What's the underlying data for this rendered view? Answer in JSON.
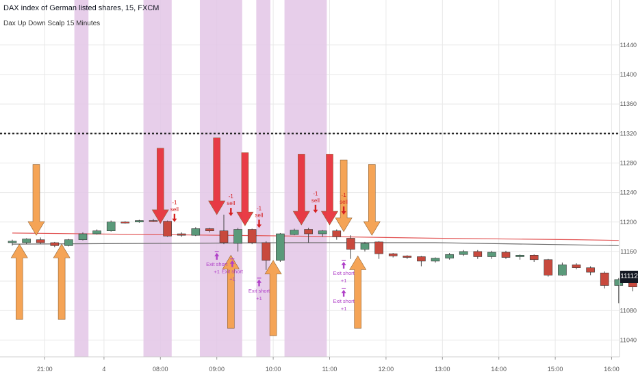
{
  "header": {
    "title": "DAX index of German listed shares, 15, FXCM",
    "subtitle": "Dax Up Down Scalp 15 Minutes"
  },
  "last_price": "11112",
  "colors": {
    "up": "#5a9a7a",
    "down": "#c8493d",
    "shade": "#e3c6e6",
    "ma_red": "#e25555",
    "ma_gray": "#6b6b6b",
    "arrow_orange": "#f5a04e",
    "arrow_red": "#e8333d",
    "marker_purple": "#b040c8",
    "dotted": "#222222",
    "grid": "#e8e8e8",
    "axis_text": "#555555"
  },
  "chart_data": {
    "type": "candlestick",
    "title": "DAX index of German listed shares, 15, FXCM",
    "indicator": "Dax Up Down Scalp 15 Minutes",
    "xlabel": "",
    "ylabel": "",
    "ylim": [
      11020,
      11500
    ],
    "yticks": [
      11040,
      11080,
      11120,
      11160,
      11200,
      11240,
      11280,
      11320,
      11360,
      11400,
      11440
    ],
    "xticks": [
      "21:00",
      "4",
      "08:00",
      "09:00",
      "10:00",
      "11:00",
      "12:00",
      "13:00",
      "14:00",
      "15:00",
      "16:00"
    ],
    "xtick_bars": [
      2.3,
      6.5,
      10.5,
      14.5,
      18.5,
      22.5,
      26.5,
      30.5,
      34.5,
      38.5,
      42.5
    ],
    "grid": true,
    "candles": [
      {
        "o": 11172,
        "h": 11176,
        "l": 11168,
        "c": 11174
      },
      {
        "o": 11172,
        "h": 11178,
        "l": 11170,
        "c": 11177
      },
      {
        "o": 11176,
        "h": 11179,
        "l": 11170,
        "c": 11172
      },
      {
        "o": 11172,
        "h": 11173,
        "l": 11166,
        "c": 11168
      },
      {
        "o": 11168,
        "h": 11177,
        "l": 11167,
        "c": 11176
      },
      {
        "o": 11176,
        "h": 11186,
        "l": 11175,
        "c": 11184
      },
      {
        "o": 11184,
        "h": 11190,
        "l": 11183,
        "c": 11188
      },
      {
        "o": 11188,
        "h": 11202,
        "l": 11187,
        "c": 11200
      },
      {
        "o": 11200,
        "h": 11201,
        "l": 11198,
        "c": 11199
      },
      {
        "o": 11200,
        "h": 11203,
        "l": 11199,
        "c": 11202
      },
      {
        "o": 11202,
        "h": 11204,
        "l": 11200,
        "c": 11201
      },
      {
        "o": 11201,
        "h": 11202,
        "l": 11180,
        "c": 11181
      },
      {
        "o": 11184,
        "h": 11186,
        "l": 11180,
        "c": 11182
      },
      {
        "o": 11182,
        "h": 11193,
        "l": 11181,
        "c": 11191
      },
      {
        "o": 11191,
        "h": 11192,
        "l": 11186,
        "c": 11188
      },
      {
        "o": 11188,
        "h": 11210,
        "l": 11170,
        "c": 11172
      },
      {
        "o": 11171,
        "h": 11192,
        "l": 11160,
        "c": 11190
      },
      {
        "o": 11190,
        "h": 11191,
        "l": 11170,
        "c": 11172
      },
      {
        "o": 11172,
        "h": 11174,
        "l": 11135,
        "c": 11148
      },
      {
        "o": 11148,
        "h": 11185,
        "l": 11146,
        "c": 11184
      },
      {
        "o": 11183,
        "h": 11191,
        "l": 11182,
        "c": 11189
      },
      {
        "o": 11190,
        "h": 11192,
        "l": 11172,
        "c": 11184
      },
      {
        "o": 11184,
        "h": 11189,
        "l": 11180,
        "c": 11188
      },
      {
        "o": 11188,
        "h": 11190,
        "l": 11176,
        "c": 11180
      },
      {
        "o": 11178,
        "h": 11182,
        "l": 11150,
        "c": 11163
      },
      {
        "o": 11163,
        "h": 11173,
        "l": 11160,
        "c": 11171
      },
      {
        "o": 11173,
        "h": 11174,
        "l": 11150,
        "c": 11157
      },
      {
        "o": 11157,
        "h": 11158,
        "l": 11152,
        "c": 11154
      },
      {
        "o": 11154,
        "h": 11155,
        "l": 11150,
        "c": 11152
      },
      {
        "o": 11153,
        "h": 11154,
        "l": 11140,
        "c": 11147
      },
      {
        "o": 11147,
        "h": 11152,
        "l": 11145,
        "c": 11151
      },
      {
        "o": 11151,
        "h": 11158,
        "l": 11149,
        "c": 11156
      },
      {
        "o": 11156,
        "h": 11162,
        "l": 11154,
        "c": 11160
      },
      {
        "o": 11160,
        "h": 11162,
        "l": 11150,
        "c": 11153
      },
      {
        "o": 11153,
        "h": 11161,
        "l": 11150,
        "c": 11159
      },
      {
        "o": 11159,
        "h": 11161,
        "l": 11150,
        "c": 11152
      },
      {
        "o": 11153,
        "h": 11156,
        "l": 11149,
        "c": 11155
      },
      {
        "o": 11155,
        "h": 11156,
        "l": 11146,
        "c": 11149
      },
      {
        "o": 11149,
        "h": 11150,
        "l": 11126,
        "c": 11128
      },
      {
        "o": 11128,
        "h": 11145,
        "l": 11127,
        "c": 11142
      },
      {
        "o": 11142,
        "h": 11144,
        "l": 11136,
        "c": 11138
      },
      {
        "o": 11138,
        "h": 11140,
        "l": 11128,
        "c": 11132
      },
      {
        "o": 11131,
        "h": 11133,
        "l": 11110,
        "c": 11114
      },
      {
        "o": 11114,
        "h": 11124,
        "l": 11090,
        "c": 11122
      },
      {
        "o": 11122,
        "h": 11124,
        "l": 11106,
        "c": 11112
      }
    ],
    "shaded_ranges": [
      [
        4.9,
        5.9
      ],
      [
        9.8,
        11.8
      ],
      [
        13.8,
        16.8
      ],
      [
        17.8,
        18.8
      ],
      [
        19.8,
        22.8
      ]
    ],
    "dotted_level": 11320,
    "ma_red": [
      [
        0,
        11185
      ],
      [
        10,
        11183
      ],
      [
        20,
        11181
      ],
      [
        30,
        11178
      ],
      [
        40,
        11176
      ],
      [
        43,
        11175
      ]
    ],
    "ma_gray": [
      [
        0,
        11170
      ],
      [
        10,
        11171
      ],
      [
        20,
        11172
      ],
      [
        30,
        11172
      ],
      [
        40,
        11169
      ],
      [
        43,
        11168
      ]
    ],
    "arrows": [
      {
        "bar": 1.7,
        "dir": "down",
        "color": "orange",
        "from": 11278,
        "to": 11182
      },
      {
        "bar": 0.5,
        "dir": "up",
        "color": "orange",
        "from": 11068,
        "to": 11170
      },
      {
        "bar": 3.5,
        "dir": "up",
        "color": "orange",
        "from": 11068,
        "to": 11170
      },
      {
        "bar": 10.5,
        "dir": "down",
        "color": "red",
        "from": 11300,
        "to": 11198
      },
      {
        "bar": 14.5,
        "dir": "down",
        "color": "red",
        "from": 11314,
        "to": 11210
      },
      {
        "bar": 16.5,
        "dir": "down",
        "color": "red",
        "from": 11294,
        "to": 11195
      },
      {
        "bar": 15.5,
        "dir": "up",
        "color": "orange",
        "from": 11056,
        "to": 11155
      },
      {
        "bar": 18.5,
        "dir": "up",
        "color": "orange",
        "from": 11046,
        "to": 11148
      },
      {
        "bar": 20.5,
        "dir": "down",
        "color": "red",
        "from": 11292,
        "to": 11196
      },
      {
        "bar": 22.5,
        "dir": "down",
        "color": "red",
        "from": 11292,
        "to": 11196
      },
      {
        "bar": 23.5,
        "dir": "down",
        "color": "orange",
        "from": 11284,
        "to": 11187
      },
      {
        "bar": 25.5,
        "dir": "down",
        "color": "orange",
        "from": 11278,
        "to": 11182
      },
      {
        "bar": 24.5,
        "dir": "up",
        "color": "orange",
        "from": 11056,
        "to": 11154
      }
    ],
    "sell_markers": [
      {
        "bar": 11.5,
        "y": 11200,
        "top": "-1",
        "bottom": "sell"
      },
      {
        "bar": 15.5,
        "y": 11208,
        "top": "-1",
        "bottom": "sell"
      },
      {
        "bar": 17.5,
        "y": 11192,
        "top": "-1",
        "bottom": "sell"
      },
      {
        "bar": 21.5,
        "y": 11212,
        "top": "-1",
        "bottom": "sell"
      },
      {
        "bar": 23.5,
        "y": 11210,
        "top": "-1",
        "bottom": "sell"
      }
    ],
    "exit_markers": [
      {
        "bar": 14.5,
        "y": 11160,
        "label": "Exit short",
        "sub": "+1"
      },
      {
        "bar": 15.6,
        "y": 11150,
        "label": "Exit short",
        "sub": "+1"
      },
      {
        "bar": 17.5,
        "y": 11124,
        "label": "Exit short",
        "sub": "+1"
      },
      {
        "bar": 23.5,
        "y": 11148,
        "label": "Exit short",
        "sub": "+1"
      },
      {
        "bar": 23.5,
        "y": 11110,
        "label": "Exit short",
        "sub": "+1"
      }
    ]
  }
}
